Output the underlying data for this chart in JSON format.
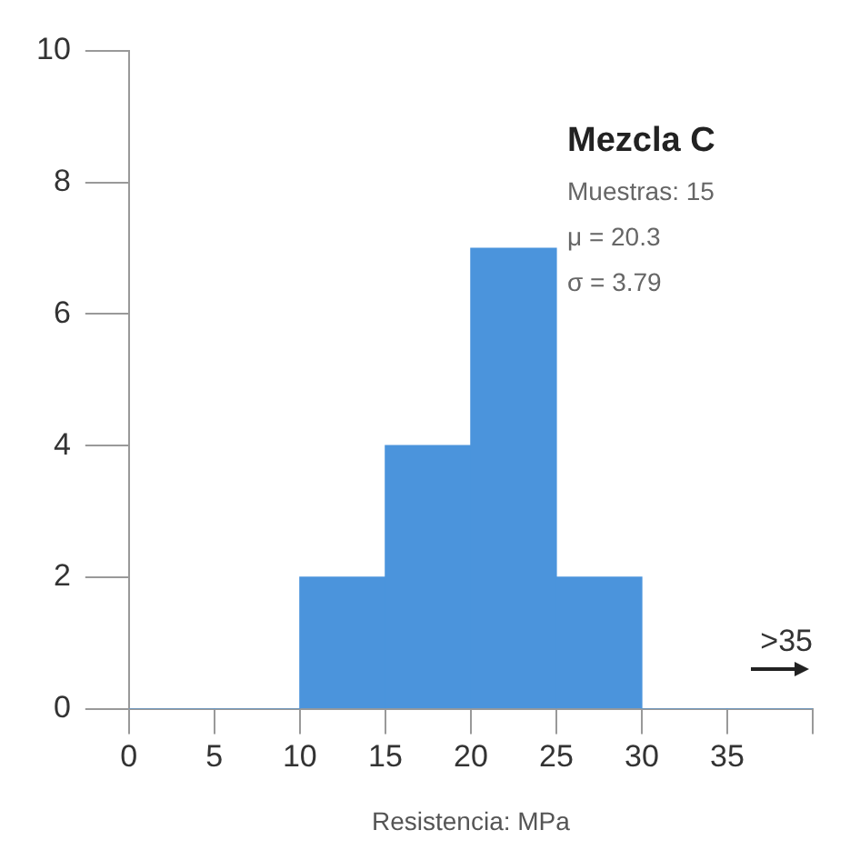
{
  "chart_data": {
    "type": "histogram",
    "title": "Mezcla C",
    "xlabel": "Resistencia: MPa",
    "bins": [
      0,
      5,
      10,
      15,
      20,
      25,
      30,
      35,
      40
    ],
    "values": [
      0,
      0,
      2,
      4,
      7,
      2,
      0,
      0
    ],
    "color": "#4b94dc",
    "xlim": [
      0,
      40
    ],
    "xticks": [
      0,
      5,
      10,
      15,
      20,
      25,
      30,
      35,
      {
        "value": 40,
        "label": null
      }
    ],
    "ylim": [
      0,
      10
    ],
    "yticks": [
      0,
      2,
      4,
      6,
      8,
      10
    ],
    "annotations": [
      "Muestras: 15",
      "μ = 20.3",
      "σ = 3.79",
      {
        "text": ">35",
        "x": 40,
        "y": 0
      }
    ],
    "grid": false,
    "legend": false
  }
}
